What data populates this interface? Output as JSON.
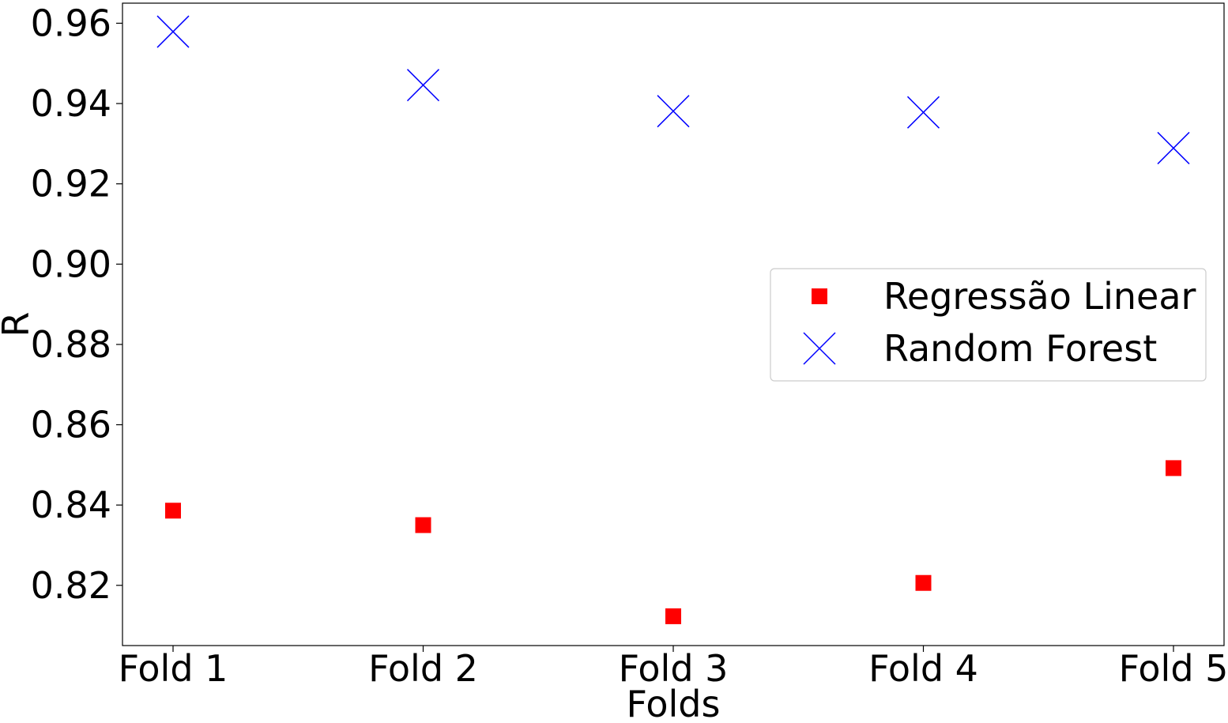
{
  "chart_data": {
    "type": "scatter",
    "categories": [
      "Fold 1",
      "Fold 2",
      "Fold 3",
      "Fold 4",
      "Fold 5"
    ],
    "xlabel": "Folds",
    "ylabel": "R",
    "ylim": [
      0.805,
      0.965
    ],
    "yticks": [
      "0.82",
      "0.84",
      "0.86",
      "0.88",
      "0.90",
      "0.92",
      "0.94",
      "0.96"
    ],
    "grid": false,
    "legend_position": "center-right",
    "series": [
      {
        "name": "Regressão Linear",
        "marker": "square",
        "color": "#ff0000",
        "values": [
          0.8386,
          0.835,
          0.8123,
          0.8206,
          0.8492
        ]
      },
      {
        "name": "Random Forest",
        "marker": "x",
        "color": "#0000ff",
        "values": [
          0.9579,
          0.9446,
          0.9381,
          0.9378,
          0.9289
        ]
      }
    ]
  }
}
